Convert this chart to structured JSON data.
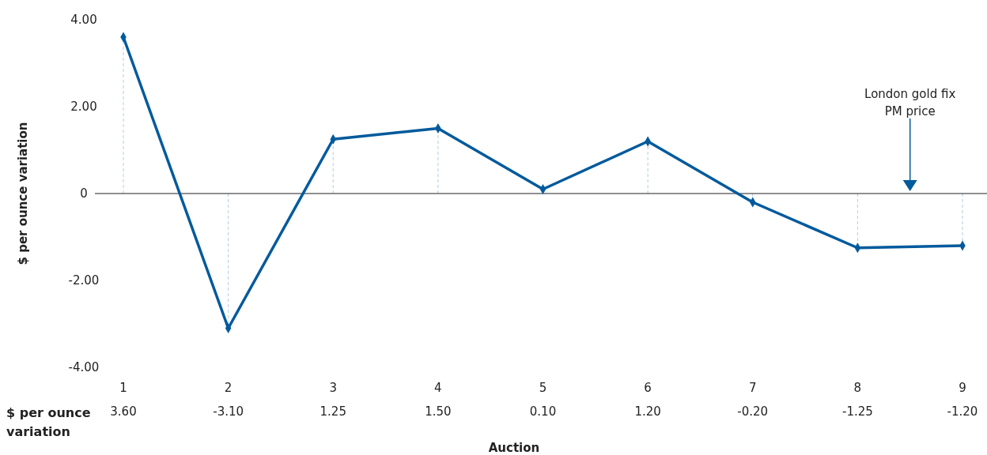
{
  "chart_data": {
    "type": "line",
    "xlabel": "Auction",
    "ylabel": "$ per ounce variation",
    "categories": [
      "1",
      "2",
      "3",
      "4",
      "5",
      "6",
      "7",
      "8",
      "9"
    ],
    "series": [
      {
        "type": "lollipop",
        "color": "#005a9c",
        "line_style": "dashed",
        "marker": "diamond",
        "values": [
          3.6,
          -3.1,
          1.25,
          1.5,
          0.1,
          1.2,
          -0.2,
          -1.25,
          -1.2
        ]
      },
      {
        "color": "#005a9c",
        "values": [
          3.6,
          -3.1,
          1.25,
          1.5,
          0.1,
          1.2,
          -0.2,
          -1.25,
          -1.2
        ],
        "value_labels": [
          "3.60",
          "-3.10",
          "1.25",
          "1.50",
          "0.10",
          "1.20",
          "-0.20",
          "-1.25",
          "-1.20"
        ]
      }
    ],
    "ref_lines": [
      {
        "axis": "y",
        "value": 0,
        "color": "#222222"
      }
    ],
    "ylim": [
      -4,
      4
    ],
    "yticks": [
      {
        "value": -4,
        "label": "-4.00"
      },
      {
        "value": -2,
        "label": "-2.00"
      },
      0,
      {
        "value": 2,
        "label": "2.00"
      },
      {
        "value": 4,
        "label": "4.00"
      }
    ],
    "grid": false,
    "line_style": "solid",
    "annotations": [
      "London gold fix\nPM price",
      "$ per ounce variation"
    ]
  }
}
